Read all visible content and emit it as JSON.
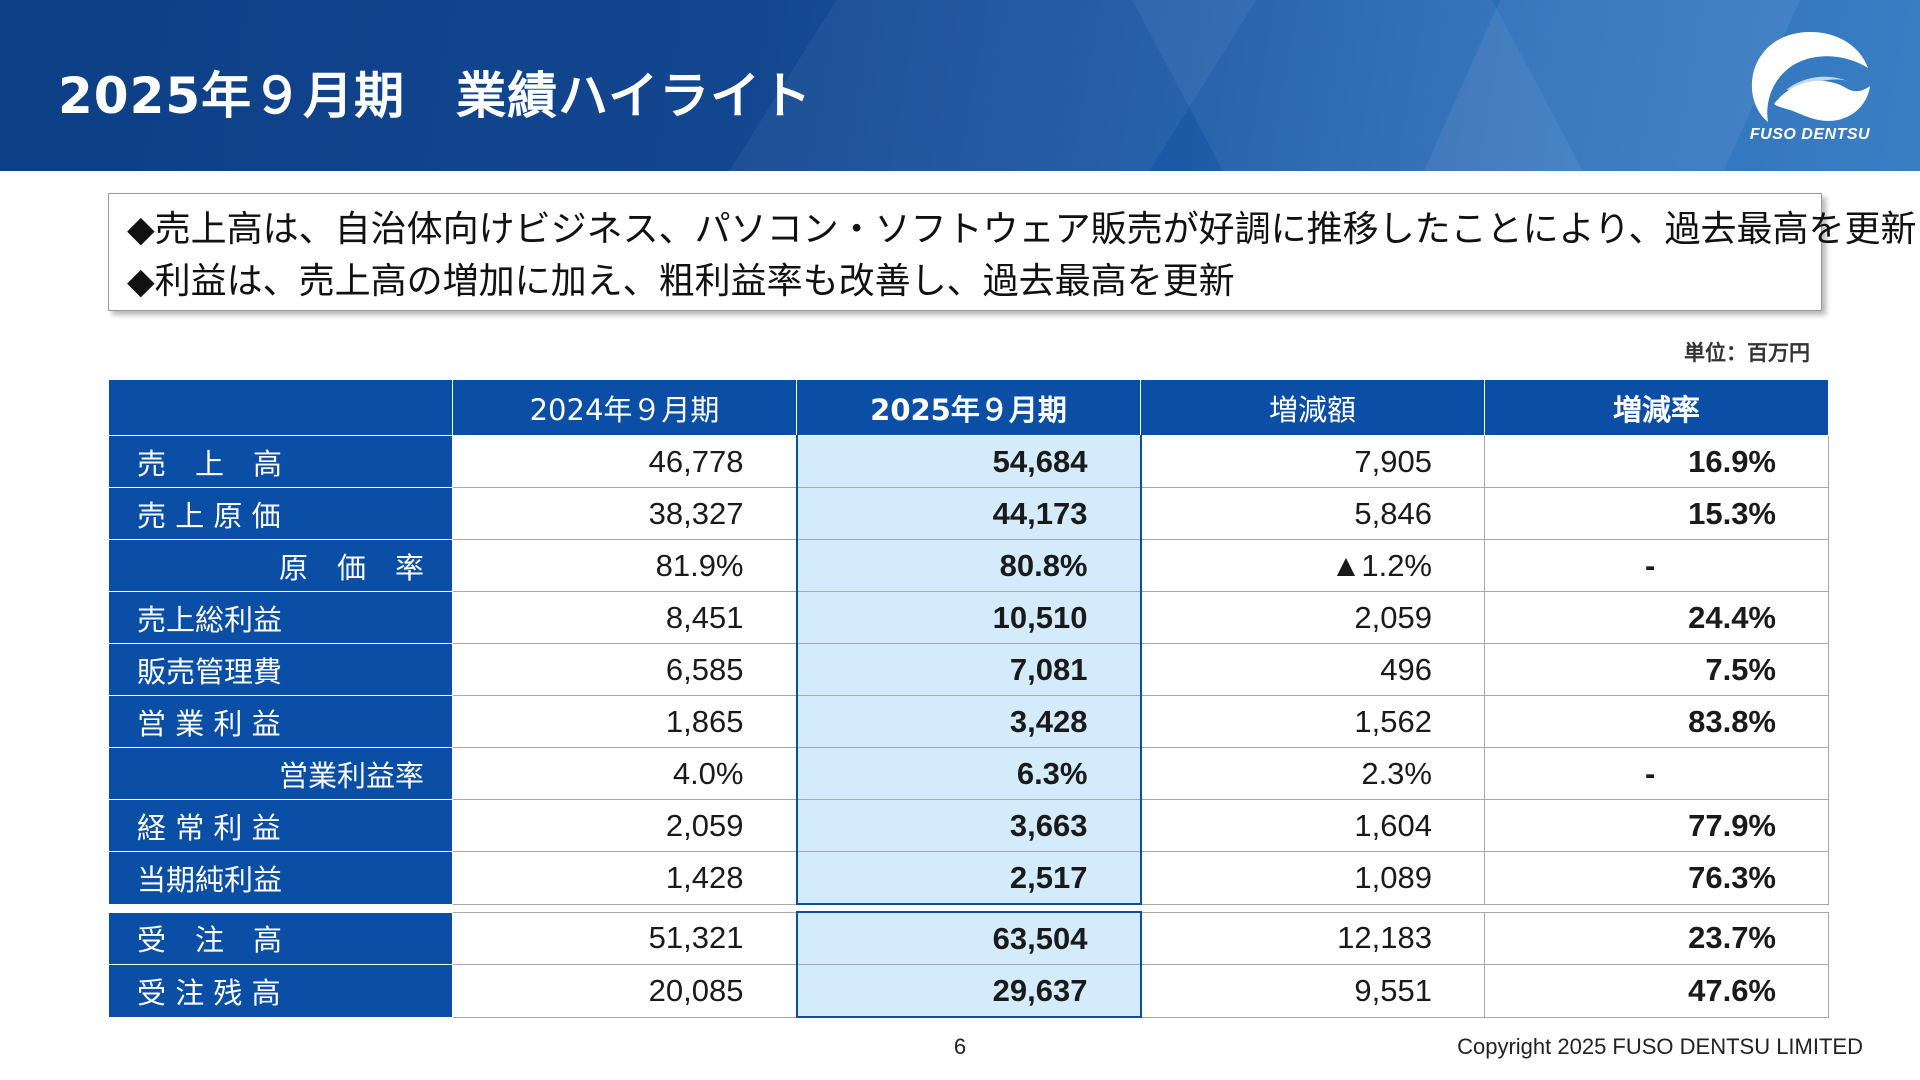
{
  "header": {
    "title": "2025年９月期　業績ハイライト",
    "logo_text": "FUSO DENTSU"
  },
  "summary": {
    "lines": [
      "◆売上高は、自治体向けビジネス、パソコン・ソフトウェア販売が好調に推移したことにより、過去最高を更新",
      "◆利益は、売上高の増加に加え、粗利益率も改善し、過去最高を更新"
    ]
  },
  "unit_label": "単位：百万円",
  "table": {
    "columns": [
      "",
      "2024年９月期",
      "2025年９月期",
      "増減額",
      "増減率"
    ],
    "rows": [
      {
        "label": "売　上　高",
        "fy2024": "46,778",
        "fy2025": "54,684",
        "change": "7,905",
        "rate": "16.9%"
      },
      {
        "label": "売 上 原 価",
        "fy2024": "38,327",
        "fy2025": "44,173",
        "change": "5,846",
        "rate": "15.3%"
      },
      {
        "label": "原　価　率",
        "fy2024": "81.9%",
        "fy2025": "80.8%",
        "change": "▲1.2%",
        "rate": "-"
      },
      {
        "label": "売上総利益",
        "fy2024": "8,451",
        "fy2025": "10,510",
        "change": "2,059",
        "rate": "24.4%"
      },
      {
        "label": "販売管理費",
        "fy2024": "6,585",
        "fy2025": "7,081",
        "change": "496",
        "rate": "7.5%"
      },
      {
        "label": "営 業 利 益",
        "fy2024": "1,865",
        "fy2025": "3,428",
        "change": "1,562",
        "rate": "83.8%"
      },
      {
        "label": "営業利益率",
        "fy2024": "4.0%",
        "fy2025": "6.3%",
        "change": "2.3%",
        "rate": "-"
      },
      {
        "label": "経 常 利 益",
        "fy2024": "2,059",
        "fy2025": "3,663",
        "change": "1,604",
        "rate": "77.9%"
      },
      {
        "label": "当期純利益",
        "fy2024": "1,428",
        "fy2025": "2,517",
        "change": "1,089",
        "rate": "76.3%"
      }
    ],
    "order_rows": [
      {
        "label": "受　注　高",
        "fy2024": "51,321",
        "fy2025": "63,504",
        "change": "12,183",
        "rate": "23.7%"
      },
      {
        "label": "受 注 残 高",
        "fy2024": "20,085",
        "fy2025": "29,637",
        "change": "9,551",
        "rate": "47.6%"
      }
    ]
  },
  "footer": {
    "page_number": "6",
    "copyright": "Copyright 2025 FUSO DENTSU LIMITED"
  },
  "colors": {
    "header_blue": "#0d3f86",
    "table_blue": "#0a4ea6",
    "highlight_column": "#d3ebfa"
  }
}
